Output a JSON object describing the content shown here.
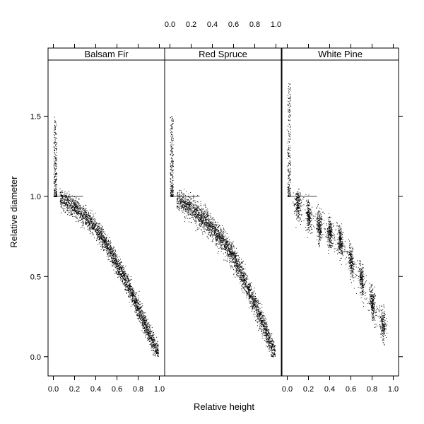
{
  "chart_data": {
    "type": "scatter",
    "xlabel": "Relative height",
    "ylabel": "Relative diameter",
    "xlim": [
      -0.05,
      1.05
    ],
    "ylim": [
      -0.12,
      1.85
    ],
    "x_ticks": [
      "0.0",
      "0.2",
      "0.4",
      "0.6",
      "0.8",
      "1.0"
    ],
    "x_tick_values": [
      0,
      0.2,
      0.4,
      0.6,
      0.8,
      1.0
    ],
    "y_ticks": [
      "0.0",
      "0.5",
      "1.0",
      "1.5"
    ],
    "y_tick_values": [
      0,
      0.5,
      1.0,
      1.5
    ],
    "reference_line": {
      "y": 1.0,
      "x_from": 0.0,
      "x_to": 0.28
    },
    "panels": [
      {
        "name": "Balsam Fir",
        "x_axis_labels": "bottom",
        "stem_base": {
          "x": [
            0.0,
            0.03
          ],
          "y": [
            1.0,
            1.5
          ]
        },
        "profile": [
          {
            "x": 0.1,
            "y": 0.98
          },
          {
            "x": 0.2,
            "y": 0.93
          },
          {
            "x": 0.3,
            "y": 0.87
          },
          {
            "x": 0.4,
            "y": 0.8
          },
          {
            "x": 0.5,
            "y": 0.7
          },
          {
            "x": 0.6,
            "y": 0.58
          },
          {
            "x": 0.7,
            "y": 0.45
          },
          {
            "x": 0.8,
            "y": 0.3
          },
          {
            "x": 0.9,
            "y": 0.15
          },
          {
            "x": 0.97,
            "y": 0.04
          }
        ],
        "spread": 0.07,
        "banded": false
      },
      {
        "name": "Red Spruce",
        "x_axis_labels": "top",
        "stem_base": {
          "x": [
            0.0,
            0.03
          ],
          "y": [
            1.0,
            1.5
          ]
        },
        "profile": [
          {
            "x": 0.1,
            "y": 0.97
          },
          {
            "x": 0.2,
            "y": 0.93
          },
          {
            "x": 0.3,
            "y": 0.87
          },
          {
            "x": 0.4,
            "y": 0.8
          },
          {
            "x": 0.5,
            "y": 0.72
          },
          {
            "x": 0.6,
            "y": 0.62
          },
          {
            "x": 0.7,
            "y": 0.48
          },
          {
            "x": 0.8,
            "y": 0.33
          },
          {
            "x": 0.9,
            "y": 0.16
          },
          {
            "x": 0.98,
            "y": 0.03
          }
        ],
        "spread": 0.08,
        "banded": false
      },
      {
        "name": "White Pine",
        "x_axis_labels": "bottom",
        "stem_base": {
          "x": [
            0.0,
            0.03
          ],
          "y": [
            1.0,
            1.72
          ]
        },
        "profile": [
          {
            "x": 0.1,
            "y": 0.95
          },
          {
            "x": 0.2,
            "y": 0.88
          },
          {
            "x": 0.3,
            "y": 0.82
          },
          {
            "x": 0.4,
            "y": 0.77
          },
          {
            "x": 0.5,
            "y": 0.72
          },
          {
            "x": 0.6,
            "y": 0.6
          },
          {
            "x": 0.7,
            "y": 0.48
          },
          {
            "x": 0.8,
            "y": 0.33
          },
          {
            "x": 0.9,
            "y": 0.2
          }
        ],
        "spread": 0.08,
        "banded": true,
        "band_positions": [
          0.1,
          0.2,
          0.3,
          0.4,
          0.5,
          0.6,
          0.7,
          0.8,
          0.9
        ]
      }
    ]
  }
}
